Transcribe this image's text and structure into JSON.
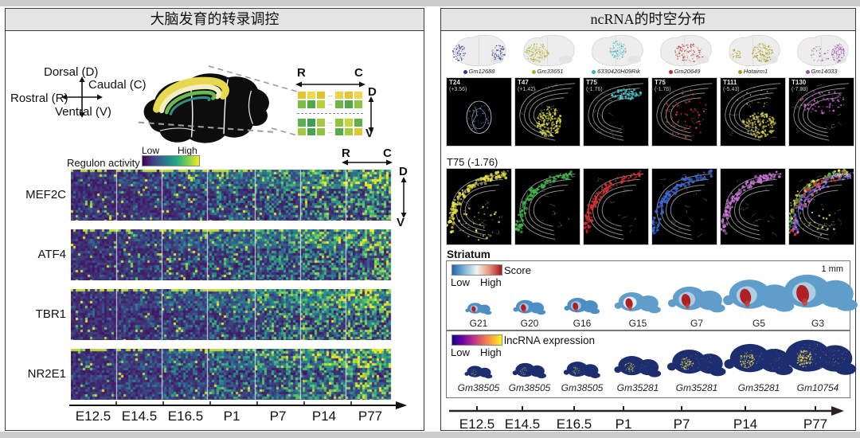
{
  "left_panel": {
    "title": "大脑发育的转录调控",
    "orientation": {
      "dorsal": "Dorsal (D)",
      "caudal": "Caudal (C)",
      "rostral": "Rostral (R)",
      "ventral": "Ventral (V)"
    },
    "inset_grid": {
      "axis_r": "R",
      "axis_c": "C",
      "axis_d": "D",
      "axis_v": "V",
      "dots": "...",
      "rows": [
        [
          "#e3c52f",
          "#edd94e",
          "#dfc22c",
          "dots",
          "#e8d34a",
          "#e3c52f",
          "#edd94e"
        ],
        [
          "#7dbd45",
          "#4fa94a",
          "#b5cf3e",
          "dots",
          "#6db647",
          "#4fa94a",
          "#8fc43f"
        ],
        "dotted",
        [
          "#5fb04a",
          "#3f9e55",
          "#a3ca40",
          "dots",
          "#8fc43f",
          "#c7d63c",
          "#5fb04a"
        ],
        [
          "#a3ca40",
          "#47a351",
          "#8fc43f",
          "dots",
          "#55ab49",
          "#a3ca40",
          "#ddca32"
        ]
      ]
    },
    "legend": {
      "label": "Regulon activity",
      "low": "Low",
      "high": "High"
    },
    "heatmap": {
      "axis_r": "R",
      "axis_c": "C",
      "axis_d": "D",
      "axis_v": "V",
      "regulons": [
        "MEF2C",
        "ATF4",
        "TBR1",
        "NR2E1"
      ],
      "colormap": "viridis"
    },
    "timeline": [
      "E12.5",
      "E14.5",
      "E16.5",
      "P1",
      "P7",
      "P14",
      "P77"
    ]
  },
  "right_panel": {
    "title": "ncRNA的时空分布",
    "genes_3d": [
      {
        "name": "Gm12688",
        "color": "#2a3a8c"
      },
      {
        "name": "Gm33651",
        "color": "#b2ae2c"
      },
      {
        "name": "6330420H09Rik",
        "color": "#3fb3b5"
      },
      {
        "name": "Gm20649",
        "color": "#b93030"
      },
      {
        "name": "Hotairm1",
        "color": "#ab9b1d"
      },
      {
        "name": "Gm14033",
        "color": "#9c50a8"
      }
    ],
    "sections_row1": [
      {
        "id": "T24",
        "value": "(+3.56)",
        "color": "#4a6fd4"
      },
      {
        "id": "T47",
        "value": "(+1.42)",
        "color": "#d9d94a"
      },
      {
        "id": "T75",
        "value": "(-1.76)",
        "color": "#4ac8cc"
      },
      {
        "id": "T75",
        "value": "(-1.76)",
        "color": "#e03434"
      },
      {
        "id": "T111",
        "value": "(-5.43)",
        "color": "#ddd24a"
      },
      {
        "id": "T130",
        "value": "(-7.98)",
        "color": "#c85fd0"
      }
    ],
    "row2": {
      "label": "T75 (-1.76)",
      "colors": [
        "#e8e34a",
        "#3cb54b",
        "#e0312e",
        "#3a67d9",
        "#c973d6"
      ],
      "merge_label": "merge"
    },
    "striatum": {
      "header": "Striatum",
      "score_label": "Score",
      "low": "Low",
      "high": "High",
      "scale": "1 mm",
      "samples": [
        "G21",
        "G20",
        "G16",
        "G15",
        "G7",
        "G5",
        "G3"
      ]
    },
    "lncrna": {
      "label": "lncRNA expression",
      "low": "Low",
      "high": "High",
      "samples": [
        "Gm38505",
        "Gm38505",
        "Gm38505",
        "Gm35281",
        "Gm35281",
        "Gm35281",
        "Gm10754"
      ]
    },
    "timeline": [
      "E12.5",
      "E14.5",
      "E16.5",
      "P1",
      "P7",
      "P14",
      "P77"
    ]
  },
  "chart_data": {
    "type": "heatmap",
    "rows": [
      "MEF2C",
      "ATF4",
      "TBR1",
      "NR2E1"
    ],
    "x_categories": [
      "E12.5",
      "E14.5",
      "E16.5",
      "P1",
      "P7",
      "P14",
      "P77"
    ],
    "value_label": "Regulon activity",
    "scale": [
      "Low",
      "High"
    ],
    "colormap": "viridis",
    "layout": "cells ordered dorsal(D)->ventral(V) vertically and rostral(R)->caudal(C) within each timepoint",
    "trend": "regulon activity low at E12.5 and rises through P14-P77, strongest dorsally for MEF2C/ATF4/TBR1"
  }
}
